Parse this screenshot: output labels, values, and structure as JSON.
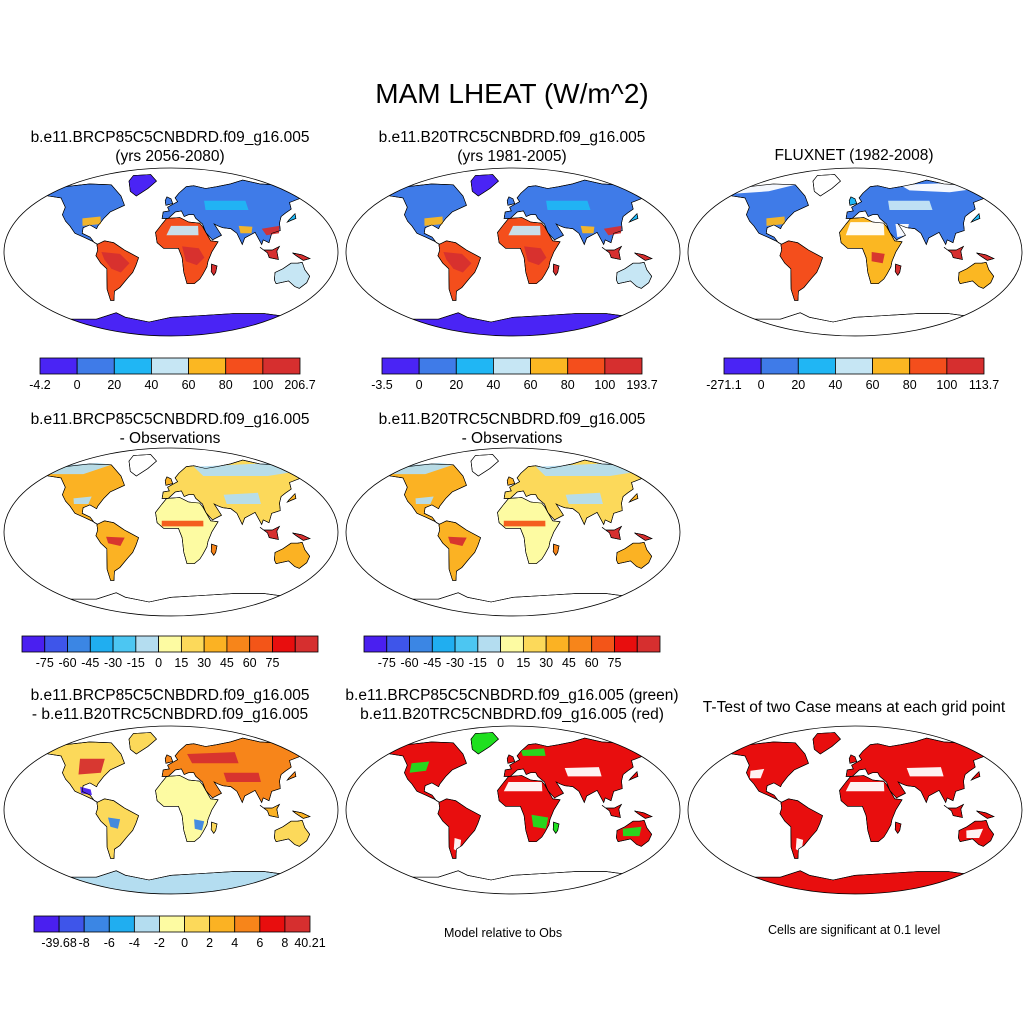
{
  "title": "MAM LHEAT (W/m^2)",
  "panels": [
    {
      "id": "p1",
      "line1": "b.e11.BRCP85C5CNBDRD.f09_g16.005",
      "line2": "(yrs 2056-2080)",
      "scheme": "abs"
    },
    {
      "id": "p2",
      "line1": "b.e11.B20TRC5CNBDRD.f09_g16.005",
      "line2": "(yrs 1981-2005)",
      "scheme": "abs"
    },
    {
      "id": "p3",
      "line1": "",
      "line2": "FLUXNET (1982-2008)",
      "scheme": "abs_obs"
    },
    {
      "id": "p4",
      "line1": "b.e11.BRCP85C5CNBDRD.f09_g16.005",
      "line2": "- Observations",
      "scheme": "diff"
    },
    {
      "id": "p5",
      "line1": "b.e11.B20TRC5CNBDRD.f09_g16.005",
      "line2": "- Observations",
      "scheme": "diff"
    },
    {
      "id": "p7",
      "line1": "b.e11.BRCP85C5CNBDRD.f09_g16.005",
      "line2": "- b.e11.B20TRC5CNBDRD.f09_g16.005",
      "scheme": "casediff"
    },
    {
      "id": "p8",
      "line1": "b.e11.BRCP85C5CNBDRD.f09_g16.005 (green)",
      "line2": "b.e11.B20TRC5CNBDRD.f09_g16.005 (red)",
      "scheme": "greenred"
    },
    {
      "id": "p9",
      "line1": "T-Test of two Case means at each grid point",
      "line2": "",
      "scheme": "ttest"
    }
  ],
  "notes": {
    "model_relative": "Model relative to Obs",
    "significance": "Cells are significant at 0.1 level"
  },
  "chart_data": [
    {
      "type": "heatmap",
      "panel": "p1",
      "title": "b.e11.BRCP85C5CNBDRD.f09_g16.005 (yrs 2056-2080)",
      "colorbar_labels": [
        "-4.2",
        "0",
        "20",
        "40",
        "60",
        "80",
        "100",
        "206.7"
      ],
      "colorbar_colors": [
        "#4a24f5",
        "#3f7be8",
        "#20b6f4",
        "#c6e6f4",
        "#fbb722",
        "#f44e1c",
        "#d62f2f"
      ]
    },
    {
      "type": "heatmap",
      "panel": "p2",
      "title": "b.e11.B20TRC5CNBDRD.f09_g16.005 (yrs 1981-2005)",
      "colorbar_labels": [
        "-3.5",
        "0",
        "20",
        "40",
        "60",
        "80",
        "100",
        "193.7"
      ],
      "colorbar_colors": [
        "#4a24f5",
        "#3f7be8",
        "#20b6f4",
        "#c6e6f4",
        "#fbb722",
        "#f44e1c",
        "#d62f2f"
      ]
    },
    {
      "type": "heatmap",
      "panel": "p3",
      "title": "FLUXNET (1982-2008)",
      "colorbar_labels": [
        "-271.1",
        "0",
        "20",
        "40",
        "60",
        "80",
        "100",
        "113.7"
      ],
      "colorbar_colors": [
        "#4a24f5",
        "#3f7be8",
        "#20b6f4",
        "#c6e6f4",
        "#fbb722",
        "#f44e1c",
        "#d62f2f"
      ]
    },
    {
      "type": "heatmap",
      "panel": "p4",
      "title": "b.e11.BRCP85C5CNBDRD.f09_g16.005 - Observations",
      "colorbar_labels": [
        "-75",
        "-60",
        "-45",
        "-30",
        "-15",
        "0",
        "15",
        "30",
        "45",
        "60",
        "75"
      ],
      "colorbar_colors": [
        "#4a1ff0",
        "#3e55ea",
        "#3b86e4",
        "#20aef0",
        "#4cc6f2",
        "#b4ddf0",
        "#fdfba2",
        "#fcd95a",
        "#fbb223",
        "#f7851a",
        "#f35518",
        "#e80e0e",
        "#d62f2f"
      ]
    },
    {
      "type": "heatmap",
      "panel": "p5",
      "title": "b.e11.B20TRC5CNBDRD.f09_g16.005 - Observations",
      "colorbar_labels": [
        "-75",
        "-60",
        "-45",
        "-30",
        "-15",
        "0",
        "15",
        "30",
        "45",
        "60",
        "75"
      ],
      "colorbar_colors": [
        "#4a1ff0",
        "#3e55ea",
        "#3b86e4",
        "#20aef0",
        "#4cc6f2",
        "#b4ddf0",
        "#fdfba2",
        "#fcd95a",
        "#fbb223",
        "#f7851a",
        "#f35518",
        "#e80e0e",
        "#d62f2f"
      ]
    },
    {
      "type": "heatmap",
      "panel": "p7",
      "title": "b.e11.BRCP85C5CNBDRD.f09_g16.005 - b.e11.B20TRC5CNBDRD.f09_g16.005",
      "colorbar_labels": [
        "-39.68",
        "-8",
        "-6",
        "-4",
        "-2",
        "0",
        "2",
        "4",
        "6",
        "8",
        "40.21"
      ],
      "colorbar_colors": [
        "#4a1ff0",
        "#3e55ea",
        "#3b86e4",
        "#20aef0",
        "#b4ddf0",
        "#fdfba2",
        "#fcd95a",
        "#fbb223",
        "#f7851a",
        "#e80e0e",
        "#d62f2f"
      ]
    }
  ]
}
